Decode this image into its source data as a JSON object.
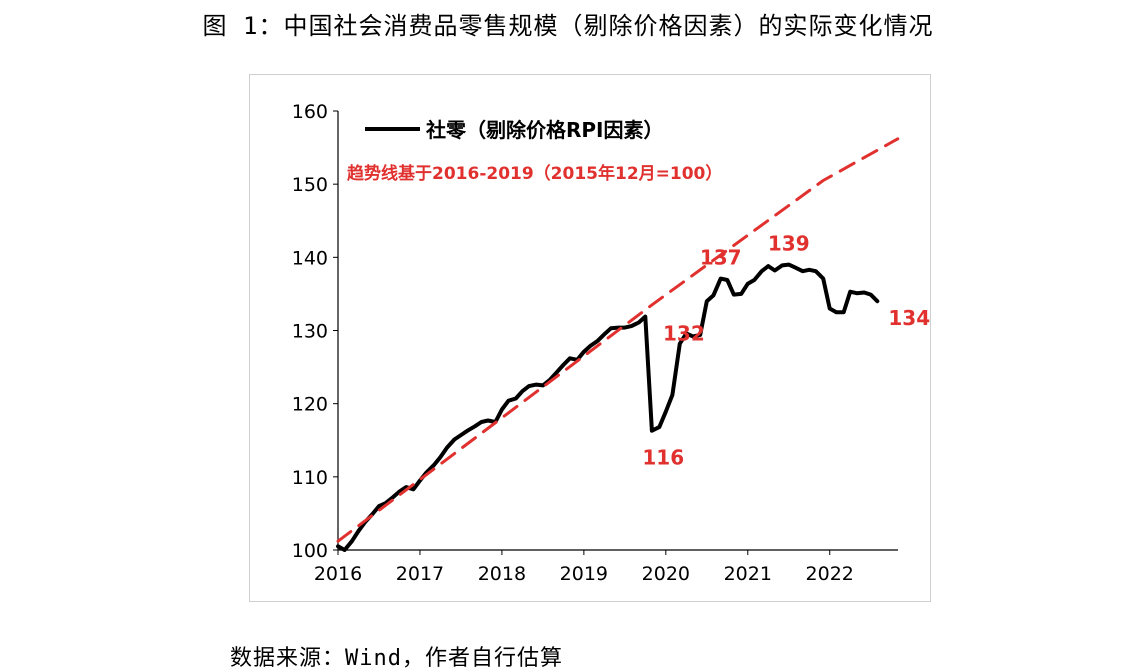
{
  "figure": {
    "title": "图 1：中国社会消费品零售规模（剔除价格因素）的实际变化情况",
    "source": "数据来源：Wind，作者自行估算"
  },
  "colors": {
    "actual": "#000000",
    "trend": "#e0312f",
    "axis": "#000000"
  },
  "chart_data": {
    "type": "line",
    "title": "",
    "xlabel": "",
    "ylabel": "",
    "ylim": [
      100,
      160
    ],
    "xlim": [
      2016.0,
      2022.833
    ],
    "yticks": [
      100,
      110,
      120,
      130,
      140,
      150,
      160
    ],
    "xticks": [
      2016,
      2017,
      2018,
      2019,
      2020,
      2021,
      2022
    ],
    "legend": {
      "label": "社零（剔除价格RPI因素）",
      "placement": "top-left"
    },
    "trend_label": "趋势线基于2016-2019（2015年12月=100）",
    "series": [
      {
        "name": "社零（剔除价格RPI因素）",
        "style": "solid",
        "color": "#000000",
        "points": [
          [
            2016.0,
            100.5
          ],
          [
            2016.08,
            100.0
          ],
          [
            2016.17,
            101.2
          ],
          [
            2016.25,
            102.6
          ],
          [
            2016.33,
            103.8
          ],
          [
            2016.42,
            104.9
          ],
          [
            2016.5,
            106.0
          ],
          [
            2016.58,
            106.4
          ],
          [
            2016.67,
            107.2
          ],
          [
            2016.75,
            108.0
          ],
          [
            2016.83,
            108.6
          ],
          [
            2016.92,
            108.3
          ],
          [
            2017.0,
            109.5
          ],
          [
            2017.08,
            110.6
          ],
          [
            2017.17,
            111.6
          ],
          [
            2017.25,
            112.7
          ],
          [
            2017.33,
            114.0
          ],
          [
            2017.42,
            115.1
          ],
          [
            2017.5,
            115.7
          ],
          [
            2017.58,
            116.3
          ],
          [
            2017.67,
            116.9
          ],
          [
            2017.75,
            117.5
          ],
          [
            2017.83,
            117.7
          ],
          [
            2017.92,
            117.5
          ],
          [
            2018.0,
            119.2
          ],
          [
            2018.08,
            120.4
          ],
          [
            2018.17,
            120.7
          ],
          [
            2018.25,
            121.7
          ],
          [
            2018.33,
            122.4
          ],
          [
            2018.42,
            122.6
          ],
          [
            2018.5,
            122.5
          ],
          [
            2018.58,
            123.2
          ],
          [
            2018.67,
            124.3
          ],
          [
            2018.75,
            125.3
          ],
          [
            2018.83,
            126.2
          ],
          [
            2018.92,
            126.0
          ],
          [
            2019.0,
            127.1
          ],
          [
            2019.08,
            127.9
          ],
          [
            2019.17,
            128.6
          ],
          [
            2019.25,
            129.5
          ],
          [
            2019.33,
            130.3
          ],
          [
            2019.42,
            130.4
          ],
          [
            2019.5,
            130.4
          ],
          [
            2019.58,
            130.6
          ],
          [
            2019.67,
            131.1
          ],
          [
            2019.75,
            131.9
          ],
          [
            2019.83,
            116.3
          ],
          [
            2019.92,
            116.8
          ],
          [
            2020.0,
            118.9
          ],
          [
            2020.08,
            121.2
          ],
          [
            2020.17,
            128.2
          ],
          [
            2020.25,
            129.6
          ],
          [
            2020.33,
            129.2
          ],
          [
            2020.42,
            129.4
          ],
          [
            2020.5,
            134.0
          ],
          [
            2020.58,
            134.8
          ],
          [
            2020.67,
            137.1
          ],
          [
            2020.75,
            136.9
          ],
          [
            2020.83,
            134.9
          ],
          [
            2020.92,
            135.0
          ],
          [
            2021.0,
            136.4
          ],
          [
            2021.08,
            136.9
          ],
          [
            2021.17,
            138.1
          ],
          [
            2021.25,
            138.8
          ],
          [
            2021.33,
            138.2
          ],
          [
            2021.42,
            138.9
          ],
          [
            2021.5,
            139.0
          ],
          [
            2021.58,
            138.6
          ],
          [
            2021.67,
            138.1
          ],
          [
            2021.75,
            138.3
          ],
          [
            2021.83,
            138.1
          ],
          [
            2021.92,
            137.1
          ],
          [
            2022.0,
            133.0
          ],
          [
            2022.08,
            132.5
          ],
          [
            2022.17,
            132.5
          ],
          [
            2022.25,
            135.3
          ],
          [
            2022.33,
            135.1
          ],
          [
            2022.42,
            135.2
          ],
          [
            2022.5,
            134.9
          ],
          [
            2022.58,
            134.0
          ]
        ]
      },
      {
        "name": "趋势线",
        "style": "dashed",
        "color": "#e0312f",
        "points": [
          [
            2016.0,
            101.2
          ],
          [
            2019.83,
            133.5
          ],
          [
            2021.92,
            150.5
          ],
          [
            2022.83,
            156.2
          ]
        ]
      }
    ],
    "annotations": [
      {
        "text": "132",
        "x": 2019.83,
        "y": 131.9,
        "anchor": "right-below"
      },
      {
        "text": "116",
        "x": 2019.92,
        "y": 116.3,
        "anchor": "below"
      },
      {
        "text": "137",
        "x": 2020.67,
        "y": 137.1,
        "anchor": "above"
      },
      {
        "text": "139",
        "x": 2021.5,
        "y": 139.0,
        "anchor": "above"
      },
      {
        "text": "134",
        "x": 2022.58,
        "y": 134.0,
        "anchor": "right-below"
      }
    ]
  }
}
